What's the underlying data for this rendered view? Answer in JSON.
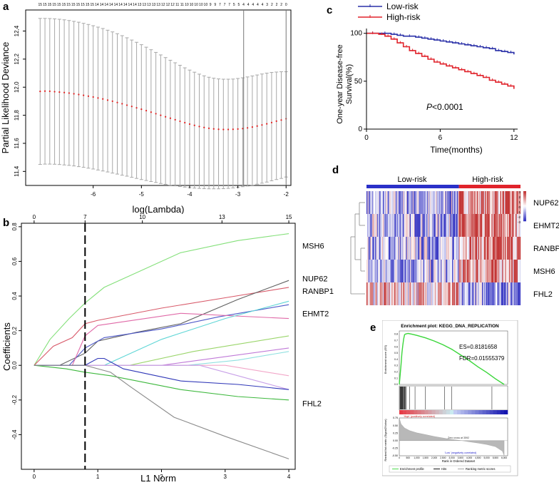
{
  "panels": {
    "a": {
      "letter": "a",
      "chart_data": {
        "type": "scatter",
        "xlabel": "log(Lambda)",
        "ylabel": "Partial Likelihood Deviance",
        "xlim": [
          -7.4,
          -1.9
        ],
        "ylim": [
          11.3,
          12.55
        ],
        "x_ticks": [
          "-6",
          "-5",
          "-4",
          "-3",
          "-2"
        ],
        "y_ticks": [
          "11,4",
          "11,6",
          "11,8",
          "12,0",
          "12,2",
          "12,4"
        ],
        "top_counts": [
          "15",
          "15",
          "15",
          "15",
          "15",
          "15",
          "15",
          "15",
          "15",
          "15",
          "15",
          "15",
          "14",
          "14",
          "14",
          "14",
          "14",
          "14",
          "14",
          "14",
          "14",
          "13",
          "13",
          "13",
          "13",
          "13",
          "12",
          "12",
          "12",
          "11",
          "11",
          "10",
          "10",
          "10",
          "10",
          "10",
          "9",
          "9",
          "7",
          "7",
          "7",
          "5",
          "5",
          "4",
          "4",
          "4",
          "4",
          "4",
          "3",
          "2",
          "2",
          "2",
          "0"
        ],
        "vlines": [
          -2.88,
          -2.0
        ],
        "series": [
          {
            "x_start": -7.1,
            "x_end": -2.0,
            "n": 52,
            "mean": [
              11.97,
              11.972,
              11.971,
              11.968,
              11.965,
              11.962,
              11.958,
              11.953,
              11.948,
              11.942,
              11.936,
              11.93,
              11.923,
              11.916,
              11.908,
              11.9,
              11.891,
              11.882,
              11.872,
              11.863,
              11.853,
              11.843,
              11.833,
              11.822,
              11.811,
              11.8,
              11.789,
              11.779,
              11.768,
              11.757,
              11.747,
              11.737,
              11.728,
              11.72,
              11.713,
              11.707,
              11.703,
              11.7,
              11.699,
              11.699,
              11.7,
              11.702,
              11.705,
              11.71,
              11.716,
              11.723,
              11.731,
              11.739,
              11.748,
              11.758,
              11.766,
              11.775
            ],
            "upper": [
              12.49,
              12.49,
              12.489,
              12.487,
              12.484,
              12.48,
              12.475,
              12.469,
              12.463,
              12.455,
              12.447,
              12.438,
              12.428,
              12.418,
              12.406,
              12.394,
              12.381,
              12.367,
              12.352,
              12.336,
              12.32,
              12.303,
              12.285,
              12.267,
              12.248,
              12.23,
              12.211,
              12.192,
              12.174,
              12.156,
              12.138,
              12.122,
              12.107,
              12.093,
              12.081,
              12.071,
              12.064,
              12.059,
              12.057,
              12.057,
              12.058,
              12.062,
              12.067,
              12.073,
              12.08,
              12.087,
              12.094,
              12.1,
              12.105,
              12.108,
              12.11,
              12.11
            ],
            "lower": [
              11.45,
              11.452,
              11.452,
              11.451,
              11.449,
              11.446,
              11.443,
              11.439,
              11.434,
              11.429,
              11.423,
              11.417,
              11.41,
              11.403,
              11.396,
              11.388,
              11.381,
              11.373,
              11.366,
              11.358,
              11.35,
              11.342,
              11.335,
              11.328,
              11.321,
              11.314,
              11.308,
              11.302,
              11.297,
              11.292,
              11.288,
              11.284,
              11.281,
              11.279,
              11.277,
              11.276,
              11.276,
              11.276,
              11.277,
              11.279,
              11.282,
              11.286,
              11.291,
              11.296,
              11.302,
              11.309,
              11.316,
              11.324,
              11.333,
              11.342,
              11.35,
              11.36
            ]
          }
        ]
      }
    },
    "b": {
      "letter": "b",
      "chart_data": {
        "type": "line",
        "xlabel": "L1 Norm",
        "ylabel": "Coefficients",
        "xlim": [
          -0.2,
          4.1
        ],
        "ylim": [
          -0.6,
          0.82
        ],
        "x_ticks": [
          "0",
          "1",
          "2",
          "3",
          "4"
        ],
        "y_ticks": [
          "-0,4",
          "-0,2",
          "0,0",
          "0,2",
          "0,4",
          "0,6",
          "0,8"
        ],
        "top_ticks": [
          {
            "x": 0,
            "label": "0"
          },
          {
            "x": 0.8,
            "label": "7"
          },
          {
            "x": 1.7,
            "label": "10"
          },
          {
            "x": 2.95,
            "label": "13"
          },
          {
            "x": 4.0,
            "label": "15"
          }
        ],
        "vline_dashed": 0.8,
        "gene_labels": [
          {
            "text": "MSH6",
            "y": 0.69
          },
          {
            "text": "NUP62",
            "y": 0.5
          },
          {
            "text": "RANBP1",
            "y": 0.43
          },
          {
            "text": "EHMT2",
            "y": 0.3
          },
          {
            "text": "FHL2",
            "y": -0.22
          }
        ],
        "series": [
          {
            "color": "#84e07a",
            "x": [
              0,
              0.25,
              0.55,
              0.8,
              1.1,
              2.3,
              3.2,
              4.0
            ],
            "y": [
              0,
              0.15,
              0.27,
              0.36,
              0.45,
              0.65,
              0.72,
              0.76
            ]
          },
          {
            "color": "#d85a6a",
            "x": [
              0,
              0.3,
              0.6,
              0.8,
              1.0,
              2.0,
              3.0,
              4.0
            ],
            "y": [
              0,
              0.11,
              0.16,
              0.24,
              0.26,
              0.33,
              0.39,
              0.45
            ]
          },
          {
            "color": "#606060",
            "x": [
              0,
              0.4,
              0.8,
              1.0,
              1.6,
              2.3,
              3.2,
              4.0
            ],
            "y": [
              0,
              0,
              0.07,
              0.14,
              0.19,
              0.24,
              0.38,
              0.49
            ]
          },
          {
            "color": "#4d58c8",
            "x": [
              0,
              0.55,
              0.8,
              1.1,
              2.0,
              2.9,
              4.0
            ],
            "y": [
              0,
              0,
              0.1,
              0.16,
              0.21,
              0.28,
              0.35
            ]
          },
          {
            "color": "#e06aa8",
            "x": [
              0,
              0.6,
              0.8,
              1.0,
              2.3,
              4.0
            ],
            "y": [
              0,
              0,
              0.17,
              0.23,
              0.3,
              0.27
            ]
          },
          {
            "color": "#5fd6d6",
            "x": [
              0,
              1.1,
              2.0,
              3.0,
              4.0
            ],
            "y": [
              0,
              0,
              0.15,
              0.27,
              0.37
            ]
          },
          {
            "color": "#9ad56a",
            "x": [
              0,
              1.5,
              2.5,
              4.0
            ],
            "y": [
              0,
              0,
              0.08,
              0.17
            ]
          },
          {
            "color": "#c07ad8",
            "x": [
              0,
              2.0,
              3.0,
              4.0
            ],
            "y": [
              0,
              0,
              0.05,
              0.1
            ]
          },
          {
            "color": "#8fe0e0",
            "x": [
              0,
              2.4,
              3.2,
              4.0
            ],
            "y": [
              0,
              0,
              0.03,
              0.08
            ]
          },
          {
            "color": "#f2a6c8",
            "x": [
              0,
              3.0,
              4.0
            ],
            "y": [
              0,
              0,
              -0.06
            ]
          },
          {
            "color": "#c8a0e8",
            "x": [
              0,
              2.6,
              3.4,
              4.0
            ],
            "y": [
              0,
              0,
              -0.08,
              -0.14
            ]
          },
          {
            "color": "#3038b8",
            "x": [
              0,
              0.8,
              1.0,
              1.1,
              1.4,
              2.3,
              3.2,
              4.0
            ],
            "y": [
              0,
              0,
              0.04,
              0.04,
              -0.02,
              -0.09,
              -0.11,
              -0.14
            ]
          },
          {
            "color": "#3db83d",
            "x": [
              0,
              0.5,
              0.8,
              1.2,
              2.3,
              3.2,
              4.0
            ],
            "y": [
              0,
              -0.02,
              -0.04,
              -0.06,
              -0.14,
              -0.18,
              -0.2
            ]
          },
          {
            "color": "#8a8a8a",
            "x": [
              0,
              0.8,
              1.2,
              1.5,
              2.2,
              3.0,
              4.0
            ],
            "y": [
              0,
              0,
              -0.04,
              -0.12,
              -0.3,
              -0.41,
              -0.54
            ]
          }
        ]
      }
    },
    "c": {
      "letter": "c",
      "chart_data": {
        "type": "line",
        "xlabel": "Time(months)",
        "ylabel": "One-year Disease-free Survival(%)",
        "ylabel_lines": [
          "One-year Disease-free",
          "Survival(%)"
        ],
        "xlim": [
          0,
          12.3
        ],
        "ylim": [
          0,
          105
        ],
        "x_ticks": [
          "0",
          "6",
          "12"
        ],
        "y_ticks": [
          "0",
          "50",
          "100"
        ],
        "annotation_italic": "P",
        "annotation_rest": "<0.0001",
        "series": [
          {
            "name": "Low-risk",
            "color": "#2a30a8",
            "x": [
              0,
              1.0,
              2.0,
              2.5,
              3.0,
              4.0,
              4.5,
              5.0,
              5.5,
              6.0,
              6.5,
              7.0,
              7.5,
              8.0,
              8.5,
              9.0,
              9.5,
              10.0,
              10.5,
              11.0,
              11.5,
              12.0
            ],
            "y": [
              100,
              100,
              99,
              98,
              97,
              96,
              95,
              94,
              93,
              92,
              91,
              90,
              89,
              88,
              87,
              86,
              85,
              84,
              82,
              81,
              80,
              78
            ]
          },
          {
            "name": "High-risk",
            "color": "#e0232b",
            "x": [
              0,
              1.0,
              1.5,
              2.0,
              2.5,
              3.0,
              3.5,
              4.0,
              4.5,
              5.0,
              5.5,
              6.0,
              6.5,
              7.0,
              7.5,
              8.0,
              8.5,
              9.0,
              9.5,
              10.0,
              10.5,
              11.0,
              11.5,
              12.0
            ],
            "y": [
              100,
              99,
              97,
              94,
              90,
              86,
              82,
              79,
              76,
              73,
              70,
              68,
              66,
              64,
              62,
              60,
              58,
              56,
              54,
              51,
              49,
              47,
              45,
              42
            ]
          }
        ]
      }
    },
    "d": {
      "letter": "d",
      "chart_data": {
        "type": "heatmap",
        "groups": [
          "Low-risk",
          "High-risk"
        ],
        "group_colors": [
          "#2a30c8",
          "#e0232b"
        ],
        "rows": [
          "NUP62",
          "EHMT2",
          "RANBP1",
          "MSH6",
          "FHL2"
        ],
        "row_means_low": [
          -0.6,
          -0.55,
          -0.5,
          -0.55,
          0.45
        ],
        "row_means_high": [
          0.9,
          0.85,
          0.9,
          0.8,
          -0.75
        ],
        "low_fraction": 0.6,
        "scale_ticks": [
          "3",
          "2",
          "1",
          "0",
          "-1",
          "-2",
          "-3"
        ],
        "scale_range": [
          -3,
          3
        ]
      }
    },
    "e": {
      "letter": "e",
      "title": "Enrichment plot: KEGG_DNA_REPLICATION",
      "es_text": "ES=0.8181658",
      "fdr_text": "FDR=0.01555379",
      "es_axis_label": "Enrichment score (ES)",
      "rank_axis_label": "Ranked list metric (Signal2Noise)",
      "x_axis_label": "Rank in Ordered Dataset",
      "high_label": "'High' (positively correlated)",
      "low_label": "'Low' (negatively correlated)",
      "zero_cross": "Zero cross at 3592",
      "legend": [
        "Enrichment profile",
        "Hits",
        "Ranking metric scores"
      ],
      "chart_data": {
        "type": "line",
        "xlim": [
          0,
          6200
        ],
        "x_ticks": [
          "0",
          "500",
          "1,000",
          "1,500",
          "2,000",
          "2,500",
          "3,000",
          "3,500",
          "4,000",
          "4,500",
          "5,000",
          "5,500",
          "6,000"
        ],
        "es_y_ticks": [
          "0.8",
          "0.7",
          "0.6",
          "0.5",
          "0.4",
          "0.3",
          "0.2",
          "0.1",
          "0.0"
        ],
        "rank_y_ticks": [
          "0.75",
          "0.50",
          "0.25",
          "0.00",
          "-0.25",
          "-0.50"
        ],
        "series": [
          {
            "name": "Enrichment profile",
            "color": "#3ad63a",
            "x": [
              0,
              50,
              100,
              150,
              200,
              250,
              300,
              350,
              500,
              700,
              1000,
              1500,
              2000,
              2500,
              3000,
              3500,
              4000,
              4500,
              5000,
              5500,
              6000
            ],
            "y": [
              0,
              0.15,
              0.32,
              0.5,
              0.62,
              0.72,
              0.79,
              0.8,
              0.81,
              0.8,
              0.78,
              0.74,
              0.69,
              0.63,
              0.56,
              0.47,
              0.38,
              0.28,
              0.19,
              0.09,
              0.0
            ]
          }
        ],
        "hits_x": [
          40,
          60,
          80,
          100,
          120,
          140,
          160,
          180,
          200,
          230,
          260,
          290,
          320,
          360,
          400,
          600,
          900,
          1500,
          2600,
          3000,
          5300
        ],
        "ranking_metric": {
          "x": [
            0,
            100,
            300,
            600,
            1000,
            1500,
            2000,
            2500,
            3000,
            3592,
            4000,
            4500,
            5000,
            5500,
            5900,
            6000
          ],
          "y": [
            0.75,
            0.55,
            0.42,
            0.33,
            0.26,
            0.2,
            0.14,
            0.09,
            0.04,
            0.0,
            -0.04,
            -0.08,
            -0.13,
            -0.2,
            -0.35,
            -0.5
          ]
        }
      }
    }
  }
}
